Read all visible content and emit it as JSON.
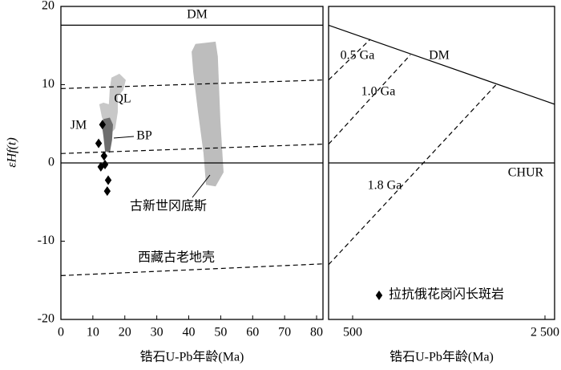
{
  "chart_data": [
    {
      "type": "scatter",
      "x_label": "锆石U-Pb年龄(Ma)",
      "y_label": "εHf(t)",
      "xlim": [
        0,
        82
      ],
      "ylim": [
        -20,
        20
      ],
      "xticks": [
        0,
        10,
        20,
        30,
        40,
        50,
        60,
        70,
        80
      ],
      "yticks": [
        -20,
        -10,
        0,
        10,
        20
      ],
      "annotations": [
        "JM"
      ],
      "lines": [
        {
          "name": "DM",
          "x": [
            0,
            82
          ],
          "y": [
            17.6,
            17.6
          ],
          "dashed": false
        },
        {
          "x": [
            0,
            82
          ],
          "y": [
            0,
            0
          ],
          "dashed": false
        },
        {
          "x": [
            0,
            82
          ],
          "y": [
            9.5,
            10.6
          ],
          "dashed": true
        },
        {
          "name": "西藏古老地壳",
          "x": [
            0,
            82
          ],
          "y": [
            -14.4,
            -12.9
          ],
          "dashed": true
        },
        {
          "x": [
            0,
            82
          ],
          "y": [
            1.2,
            2.4
          ],
          "dashed": true
        }
      ],
      "fields": [
        {
          "name": "QL",
          "color": "#c8c8c8",
          "x": [
            15.8,
            18.3,
            20.3,
            19.5,
            17.8,
            17.8,
            17.0,
            15.3,
            14.0,
            12.8,
            12.0,
            13.3,
            15.0,
            15.3
          ],
          "y": [
            10.9,
            11.4,
            10.6,
            9.3,
            8.5,
            6.5,
            4.4,
            3.6,
            4.4,
            5.9,
            7.5,
            7.7,
            7.5,
            9.5
          ]
        },
        {
          "name": "BP",
          "color": "#6e6e6e",
          "x": [
            13.3,
            15.3,
            16.3,
            16.0,
            15.3,
            13.8,
            13.3,
            12.8
          ],
          "y": [
            5.6,
            5.8,
            4.9,
            2.9,
            1.3,
            1.5,
            3.4,
            4.9
          ]
        },
        {
          "name": "古新世冈底斯",
          "color": "#bdbdbd",
          "x": [
            42.1,
            48.4,
            49.1,
            49.9,
            50.9,
            48.4,
            45.4,
            44.6,
            42.9,
            41.4,
            40.9
          ],
          "y": [
            15.2,
            15.5,
            13.6,
            5.4,
            -1.2,
            -3.0,
            -2.8,
            1.3,
            6.5,
            11.6,
            14.2
          ]
        }
      ],
      "series": [
        {
          "name": "拉抗俄花岗闪长斑岩",
          "color": "#000000",
          "x": [
            13.0,
            11.8,
            13.5,
            12.5,
            13.8,
            14.8,
            14.5
          ],
          "y": [
            4.9,
            2.5,
            0.9,
            -0.5,
            -0.2,
            -2.2,
            -3.6
          ]
        }
      ]
    },
    {
      "type": "line",
      "x_label": "锆石U-Pb年龄(Ma)",
      "xlim": [
        250,
        2600
      ],
      "ylim": [
        -20,
        20
      ],
      "xticks": [
        500,
        {
          "value": 2500,
          "label": "2 500"
        }
      ],
      "lines": [
        {
          "name": "DM",
          "x": [
            250,
            2600
          ],
          "y": [
            17.6,
            7.5
          ],
          "dashed": false
        },
        {
          "name": "CHUR",
          "x": [
            250,
            2600
          ],
          "y": [
            0,
            0
          ],
          "dashed": false
        },
        {
          "name": "0.5 Ga",
          "x": [
            250,
            683
          ],
          "y": [
            10.6,
            15.8
          ],
          "dashed": true
        },
        {
          "name": "1.0 Ga",
          "x": [
            250,
            1100
          ],
          "y": [
            2.4,
            13.8
          ],
          "dashed": true
        },
        {
          "name": "1.8 Ga",
          "x": [
            250,
            2000
          ],
          "y": [
            -13.0,
            10.1
          ],
          "dashed": true
        }
      ]
    }
  ]
}
